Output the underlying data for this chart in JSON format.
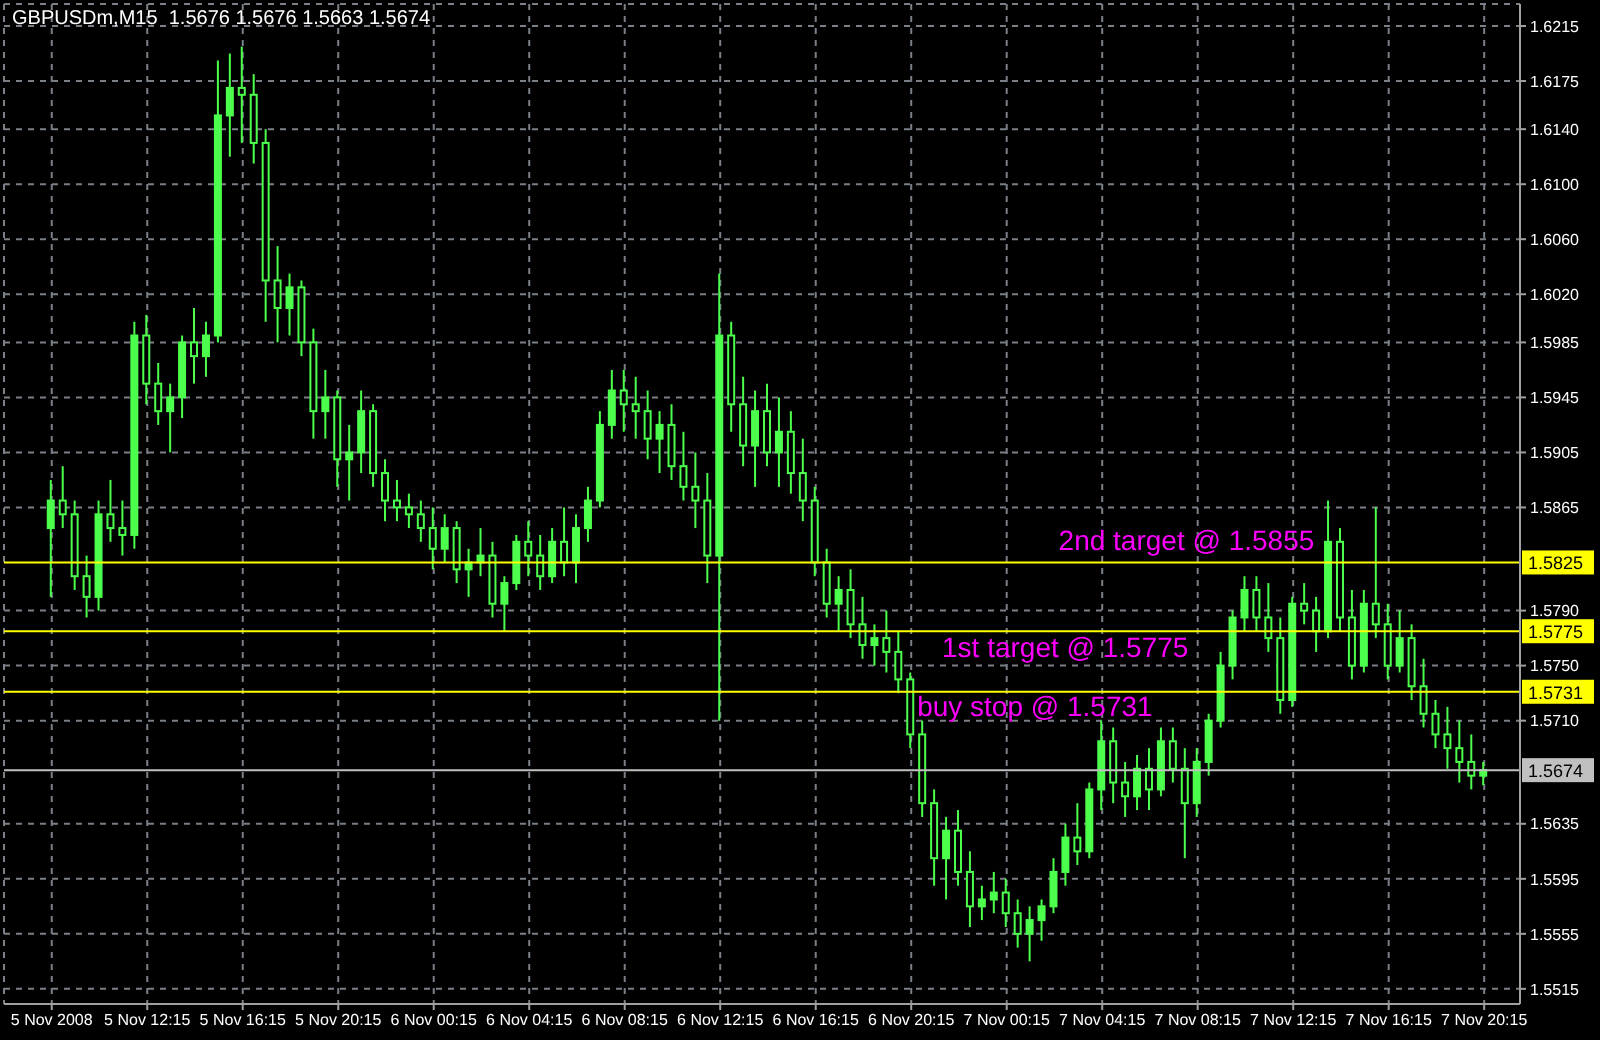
{
  "chart_data": {
    "type": "candlestick",
    "title": "GBPUSDm,M15  1.5676 1.5676 1.5663 1.5674",
    "x": [
      "2008-11-05T08:15",
      "2008-11-05T08:45",
      "2008-11-05T09:15",
      "2008-11-05T09:45",
      "2008-11-05T10:15",
      "2008-11-05T10:45",
      "2008-11-05T11:15",
      "2008-11-05T11:45",
      "2008-11-05T12:15",
      "2008-11-05T12:45",
      "2008-11-05T13:15",
      "2008-11-05T13:45",
      "2008-11-05T14:15",
      "2008-11-05T14:45",
      "2008-11-05T15:15",
      "2008-11-05T15:45",
      "2008-11-05T16:15",
      "2008-11-05T16:45",
      "2008-11-05T17:15",
      "2008-11-05T17:45",
      "2008-11-05T18:15",
      "2008-11-05T18:45",
      "2008-11-05T19:15",
      "2008-11-05T19:45",
      "2008-11-05T20:15",
      "2008-11-05T20:45",
      "2008-11-05T21:15",
      "2008-11-05T21:45",
      "2008-11-05T22:15",
      "2008-11-05T22:45",
      "2008-11-05T23:15",
      "2008-11-05T23:45",
      "2008-11-06T00:15",
      "2008-11-06T00:45",
      "2008-11-06T01:15",
      "2008-11-06T01:45",
      "2008-11-06T02:15",
      "2008-11-06T02:45",
      "2008-11-06T03:15",
      "2008-11-06T03:45",
      "2008-11-06T04:15",
      "2008-11-06T04:45",
      "2008-11-06T05:15",
      "2008-11-06T05:45",
      "2008-11-06T06:15",
      "2008-11-06T06:45",
      "2008-11-06T07:15",
      "2008-11-06T07:45",
      "2008-11-06T08:15",
      "2008-11-06T08:45",
      "2008-11-06T09:15",
      "2008-11-06T09:45",
      "2008-11-06T10:15",
      "2008-11-06T10:45",
      "2008-11-06T11:15",
      "2008-11-06T11:45",
      "2008-11-06T12:15",
      "2008-11-06T12:45",
      "2008-11-06T13:15",
      "2008-11-06T13:45",
      "2008-11-06T14:15",
      "2008-11-06T14:45",
      "2008-11-06T15:15",
      "2008-11-06T15:45",
      "2008-11-06T16:15",
      "2008-11-06T16:45",
      "2008-11-06T17:15",
      "2008-11-06T17:45",
      "2008-11-06T18:15",
      "2008-11-06T18:45",
      "2008-11-06T19:15",
      "2008-11-06T19:45",
      "2008-11-06T20:15",
      "2008-11-06T20:45",
      "2008-11-06T21:15",
      "2008-11-06T21:45",
      "2008-11-06T22:15",
      "2008-11-06T22:45",
      "2008-11-06T23:15",
      "2008-11-06T23:45",
      "2008-11-07T00:15",
      "2008-11-07T00:45",
      "2008-11-07T01:15",
      "2008-11-07T01:45",
      "2008-11-07T02:15",
      "2008-11-07T02:45",
      "2008-11-07T03:15",
      "2008-11-07T03:45",
      "2008-11-07T04:15",
      "2008-11-07T04:45",
      "2008-11-07T05:15",
      "2008-11-07T05:45",
      "2008-11-07T06:15",
      "2008-11-07T06:45",
      "2008-11-07T07:15",
      "2008-11-07T07:45",
      "2008-11-07T08:15",
      "2008-11-07T08:45",
      "2008-11-07T09:15",
      "2008-11-07T09:45",
      "2008-11-07T10:15",
      "2008-11-07T10:45",
      "2008-11-07T11:15",
      "2008-11-07T11:45",
      "2008-11-07T12:15",
      "2008-11-07T12:45",
      "2008-11-07T13:15",
      "2008-11-07T13:45",
      "2008-11-07T14:15",
      "2008-11-07T14:45",
      "2008-11-07T15:15",
      "2008-11-07T15:45",
      "2008-11-07T16:15",
      "2008-11-07T16:45",
      "2008-11-07T17:15",
      "2008-11-07T17:45",
      "2008-11-07T18:15",
      "2008-11-07T18:45",
      "2008-11-07T19:15",
      "2008-11-07T19:45",
      "2008-11-07T20:15"
    ],
    "color": "#4cff4c",
    "ohlc": [
      [
        1.585,
        1.5885,
        1.58,
        1.587
      ],
      [
        1.587,
        1.5895,
        1.585,
        1.586
      ],
      [
        1.586,
        1.587,
        1.5805,
        1.5815
      ],
      [
        1.5815,
        1.583,
        1.5785,
        1.58
      ],
      [
        1.58,
        1.587,
        1.579,
        1.586
      ],
      [
        1.586,
        1.5885,
        1.584,
        1.585
      ],
      [
        1.585,
        1.587,
        1.583,
        1.5845
      ],
      [
        1.5845,
        1.6,
        1.5835,
        1.599
      ],
      [
        1.599,
        1.6005,
        1.594,
        1.5955
      ],
      [
        1.5955,
        1.597,
        1.5925,
        1.5935
      ],
      [
        1.5935,
        1.5955,
        1.5905,
        1.5945
      ],
      [
        1.5945,
        1.599,
        1.593,
        1.5985
      ],
      [
        1.5985,
        1.601,
        1.5955,
        1.5975
      ],
      [
        1.5975,
        1.6,
        1.596,
        1.599
      ],
      [
        1.599,
        1.619,
        1.5985,
        1.615
      ],
      [
        1.615,
        1.6195,
        1.612,
        1.617
      ],
      [
        1.617,
        1.62,
        1.613,
        1.6165
      ],
      [
        1.6165,
        1.618,
        1.6115,
        1.613
      ],
      [
        1.613,
        1.614,
        1.6,
        1.603
      ],
      [
        1.603,
        1.6055,
        1.5985,
        1.601
      ],
      [
        1.601,
        1.6035,
        1.599,
        1.6025
      ],
      [
        1.6025,
        1.603,
        1.5975,
        1.5985
      ],
      [
        1.5985,
        1.5995,
        1.5915,
        1.5935
      ],
      [
        1.5935,
        1.5965,
        1.5915,
        1.5945
      ],
      [
        1.5945,
        1.595,
        1.588,
        1.59
      ],
      [
        1.59,
        1.5925,
        1.587,
        1.5905
      ],
      [
        1.5905,
        1.595,
        1.589,
        1.5935
      ],
      [
        1.5935,
        1.594,
        1.588,
        1.589
      ],
      [
        1.589,
        1.59,
        1.5855,
        1.587
      ],
      [
        1.587,
        1.5885,
        1.5855,
        1.5865
      ],
      [
        1.5865,
        1.5875,
        1.585,
        1.586
      ],
      [
        1.586,
        1.587,
        1.584,
        1.585
      ],
      [
        1.585,
        1.5865,
        1.582,
        1.5835
      ],
      [
        1.5835,
        1.586,
        1.5825,
        1.585
      ],
      [
        1.585,
        1.5855,
        1.581,
        1.582
      ],
      [
        1.582,
        1.5835,
        1.58,
        1.5825
      ],
      [
        1.5825,
        1.585,
        1.5815,
        1.583
      ],
      [
        1.583,
        1.584,
        1.5785,
        1.5795
      ],
      [
        1.5795,
        1.5815,
        1.5775,
        1.581
      ],
      [
        1.581,
        1.5845,
        1.5805,
        1.584
      ],
      [
        1.584,
        1.5855,
        1.5815,
        1.583
      ],
      [
        1.583,
        1.5845,
        1.5805,
        1.5815
      ],
      [
        1.5815,
        1.585,
        1.581,
        1.584
      ],
      [
        1.584,
        1.5865,
        1.5815,
        1.5825
      ],
      [
        1.5825,
        1.586,
        1.581,
        1.585
      ],
      [
        1.585,
        1.588,
        1.584,
        1.587
      ],
      [
        1.587,
        1.5935,
        1.5865,
        1.5925
      ],
      [
        1.5925,
        1.5965,
        1.5915,
        1.595
      ],
      [
        1.595,
        1.5965,
        1.592,
        1.594
      ],
      [
        1.594,
        1.596,
        1.5915,
        1.5935
      ],
      [
        1.5935,
        1.595,
        1.59,
        1.5915
      ],
      [
        1.5915,
        1.5935,
        1.589,
        1.5925
      ],
      [
        1.5925,
        1.594,
        1.5885,
        1.5895
      ],
      [
        1.5895,
        1.592,
        1.587,
        1.588
      ],
      [
        1.588,
        1.5905,
        1.585,
        1.587
      ],
      [
        1.587,
        1.589,
        1.581,
        1.583
      ],
      [
        1.583,
        1.6035,
        1.571,
        1.599
      ],
      [
        1.599,
        1.6,
        1.592,
        1.594
      ],
      [
        1.594,
        1.596,
        1.5895,
        1.591
      ],
      [
        1.591,
        1.595,
        1.588,
        1.5935
      ],
      [
        1.5935,
        1.5955,
        1.5895,
        1.5905
      ],
      [
        1.5905,
        1.5945,
        1.588,
        1.592
      ],
      [
        1.592,
        1.5935,
        1.5875,
        1.589
      ],
      [
        1.589,
        1.5915,
        1.5855,
        1.587
      ],
      [
        1.587,
        1.588,
        1.5815,
        1.5825
      ],
      [
        1.5825,
        1.5835,
        1.5785,
        1.5795
      ],
      [
        1.5795,
        1.5815,
        1.5775,
        1.5805
      ],
      [
        1.5805,
        1.582,
        1.577,
        1.578
      ],
      [
        1.578,
        1.58,
        1.5755,
        1.5765
      ],
      [
        1.5765,
        1.578,
        1.575,
        1.577
      ],
      [
        1.577,
        1.579,
        1.5745,
        1.576
      ],
      [
        1.576,
        1.5775,
        1.573,
        1.574
      ],
      [
        1.574,
        1.5745,
        1.569,
        1.57
      ],
      [
        1.57,
        1.571,
        1.564,
        1.565
      ],
      [
        1.565,
        1.566,
        1.559,
        1.561
      ],
      [
        1.561,
        1.564,
        1.558,
        1.563
      ],
      [
        1.563,
        1.5645,
        1.559,
        1.56
      ],
      [
        1.56,
        1.5615,
        1.556,
        1.5575
      ],
      [
        1.5575,
        1.559,
        1.5565,
        1.558
      ],
      [
        1.558,
        1.56,
        1.557,
        1.5585
      ],
      [
        1.5585,
        1.5595,
        1.556,
        1.557
      ],
      [
        1.557,
        1.558,
        1.5545,
        1.5555
      ],
      [
        1.5555,
        1.5575,
        1.5535,
        1.5565
      ],
      [
        1.5565,
        1.558,
        1.555,
        1.5575
      ],
      [
        1.5575,
        1.561,
        1.557,
        1.56
      ],
      [
        1.56,
        1.5635,
        1.559,
        1.5625
      ],
      [
        1.5625,
        1.565,
        1.5605,
        1.5615
      ],
      [
        1.5615,
        1.5665,
        1.561,
        1.566
      ],
      [
        1.566,
        1.571,
        1.5645,
        1.5695
      ],
      [
        1.5695,
        1.5705,
        1.565,
        1.5665
      ],
      [
        1.5665,
        1.568,
        1.564,
        1.5655
      ],
      [
        1.5655,
        1.5685,
        1.5645,
        1.5675
      ],
      [
        1.5675,
        1.569,
        1.5645,
        1.566
      ],
      [
        1.566,
        1.5705,
        1.5655,
        1.5695
      ],
      [
        1.5695,
        1.5705,
        1.5665,
        1.5675
      ],
      [
        1.5675,
        1.569,
        1.561,
        1.565
      ],
      [
        1.565,
        1.569,
        1.564,
        1.568
      ],
      [
        1.568,
        1.5715,
        1.567,
        1.571
      ],
      [
        1.571,
        1.576,
        1.5705,
        1.575
      ],
      [
        1.575,
        1.579,
        1.574,
        1.5785
      ],
      [
        1.5785,
        1.5815,
        1.5775,
        1.5805
      ],
      [
        1.5805,
        1.5815,
        1.5775,
        1.5785
      ],
      [
        1.5785,
        1.581,
        1.576,
        1.577
      ],
      [
        1.577,
        1.5785,
        1.5715,
        1.5725
      ],
      [
        1.5725,
        1.58,
        1.572,
        1.5795
      ],
      [
        1.5795,
        1.581,
        1.578,
        1.579
      ],
      [
        1.579,
        1.58,
        1.576,
        1.5775
      ],
      [
        1.5775,
        1.587,
        1.577,
        1.584
      ],
      [
        1.584,
        1.585,
        1.5775,
        1.5785
      ],
      [
        1.5785,
        1.5805,
        1.574,
        1.575
      ],
      [
        1.575,
        1.5805,
        1.5745,
        1.5795
      ],
      [
        1.5795,
        1.5865,
        1.577,
        1.578
      ],
      [
        1.578,
        1.5795,
        1.574,
        1.575
      ],
      [
        1.575,
        1.579,
        1.5745,
        1.577
      ],
      [
        1.577,
        1.578,
        1.5725,
        1.5735
      ],
      [
        1.5735,
        1.5755,
        1.5705,
        1.5715
      ],
      [
        1.5715,
        1.5725,
        1.569,
        1.57
      ],
      [
        1.57,
        1.572,
        1.5675,
        1.569
      ],
      [
        1.569,
        1.571,
        1.5665,
        1.568
      ],
      [
        1.568,
        1.57,
        1.566,
        1.567
      ],
      [
        1.567,
        1.568,
        1.5663,
        1.5674
      ]
    ],
    "xlim": [
      "2008-11-05T06:15",
      "2008-11-07T21:45"
    ],
    "xticks": [
      {
        "value": "2008-11-05T08:15",
        "label": "5 Nov 2008"
      },
      {
        "value": "2008-11-05T12:15",
        "label": "5 Nov 12:15"
      },
      {
        "value": "2008-11-05T16:15",
        "label": "5 Nov 16:15"
      },
      {
        "value": "2008-11-05T20:15",
        "label": "5 Nov 20:15"
      },
      {
        "value": "2008-11-06T00:15",
        "label": "6 Nov 00:15"
      },
      {
        "value": "2008-11-06T04:15",
        "label": "6 Nov 04:15"
      },
      {
        "value": "2008-11-06T08:15",
        "label": "6 Nov 08:15"
      },
      {
        "value": "2008-11-06T12:15",
        "label": "6 Nov 12:15"
      },
      {
        "value": "2008-11-06T16:15",
        "label": "6 Nov 16:15"
      },
      {
        "value": "2008-11-06T20:15",
        "label": "6 Nov 20:15"
      },
      {
        "value": "2008-11-07T00:15",
        "label": "7 Nov 00:15"
      },
      {
        "value": "2008-11-07T04:15",
        "label": "7 Nov 04:15"
      },
      {
        "value": "2008-11-07T08:15",
        "label": "7 Nov 08:15"
      },
      {
        "value": "2008-11-07T12:15",
        "label": "7 Nov 12:15"
      },
      {
        "value": "2008-11-07T16:15",
        "label": "7 Nov 16:15"
      },
      {
        "value": "2008-11-07T20:15",
        "label": "7 Nov 20:15"
      }
    ],
    "ylim": [
      1.5504,
      1.6231
    ],
    "yticks": [
      1.5515,
      1.5555,
      1.5595,
      1.5635,
      {
        "value": 1.571,
        "label": "1.5710"
      },
      {
        "value": 1.575,
        "label": "1.5750"
      },
      {
        "value": 1.579,
        "label": "1.5790"
      },
      1.5865,
      1.5905,
      1.5945,
      1.5985,
      {
        "value": 1.602,
        "label": "1.6020"
      },
      {
        "value": 1.606,
        "label": "1.6060"
      },
      {
        "value": 1.61,
        "label": "1.6100"
      },
      {
        "value": 1.614,
        "label": "1.6140"
      },
      1.6175,
      1.6215
    ],
    "grid": true,
    "ref_lines": [
      {
        "axis": "y",
        "value": 1.5825,
        "label": "1.5825",
        "color": "#ffff00"
      },
      {
        "axis": "y",
        "value": 1.5775,
        "label": "1.5775",
        "color": "#ffff00"
      },
      {
        "axis": "y",
        "value": 1.5731,
        "label": "1.5731",
        "color": "#ffff00"
      },
      {
        "axis": "y",
        "value": 1.5674,
        "label": "1.5674",
        "color": "#c0c0c0"
      }
    ],
    "annotations": [
      "2nd target @ 1.5855",
      "1st target @ 1.5775",
      "buy stop @ 1.5731"
    ]
  }
}
